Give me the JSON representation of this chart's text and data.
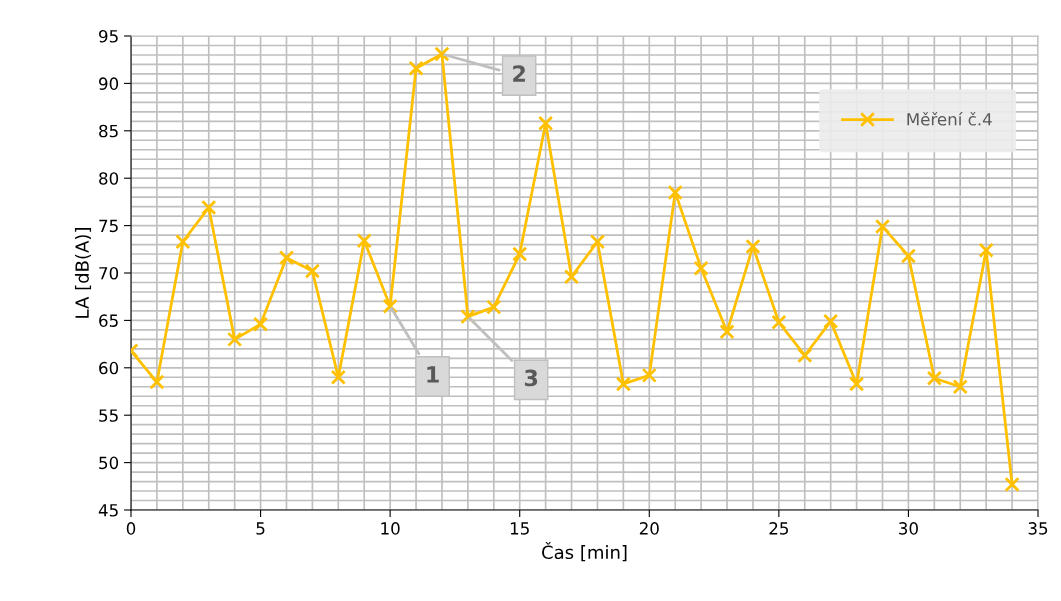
{
  "chart_data": {
    "type": "line",
    "xlabel": "Čas [min]",
    "ylabel": "LA [dB(A)]",
    "x": [
      0,
      1,
      2,
      3,
      4,
      5,
      6,
      7,
      8,
      9,
      10,
      11,
      12,
      13,
      14,
      15,
      16,
      17,
      18,
      19,
      20,
      21,
      22,
      23,
      24,
      25,
      26,
      27,
      28,
      29,
      30,
      31,
      32,
      33,
      34
    ],
    "series": [
      {
        "name": "Měření č.4",
        "color": "#ffc000",
        "values": [
          61.8,
          58.5,
          73.3,
          76.9,
          63.0,
          64.6,
          71.6,
          70.2,
          59.0,
          73.4,
          66.5,
          91.6,
          93.1,
          65.4,
          66.4,
          72.0,
          85.8,
          69.6,
          73.3,
          58.3,
          59.2,
          78.5,
          70.5,
          63.8,
          72.8,
          64.8,
          61.3,
          64.9,
          58.3,
          74.9,
          71.8,
          58.9,
          58.0,
          72.4,
          47.7
        ]
      }
    ],
    "xlim": [
      0,
      35
    ],
    "xticks": [
      0,
      5,
      10,
      15,
      20,
      25,
      30,
      35
    ],
    "ylim": [
      45,
      95
    ],
    "yticks": [
      45,
      50,
      55,
      60,
      65,
      70,
      75,
      80,
      85,
      90,
      95
    ],
    "grid": true,
    "legend": "top right",
    "marker": "cross",
    "line_style": "solid",
    "annotations": [
      {
        "text": "1",
        "x": 10,
        "y": 66.5
      },
      {
        "text": "2",
        "x": 12,
        "y": 93.1
      },
      {
        "text": "3",
        "x": 13,
        "y": 65.4
      }
    ]
  }
}
